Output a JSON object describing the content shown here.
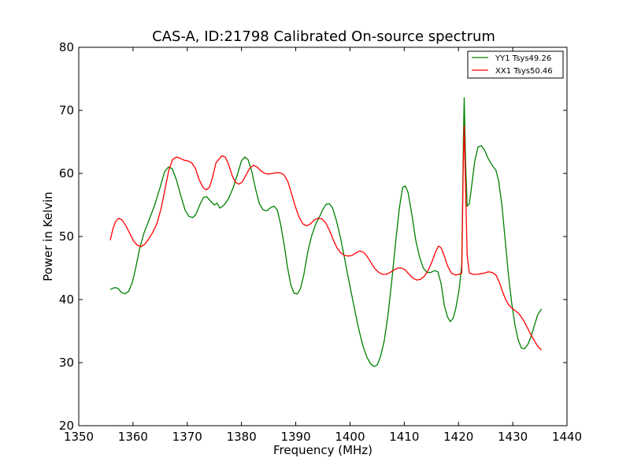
{
  "chart_data": {
    "type": "line",
    "title": "CAS-A, ID:21798 Calibrated On-source spectrum",
    "xlabel": "Frequency (MHz)",
    "ylabel": "Power in Kelvin",
    "xlim": [
      1350,
      1440
    ],
    "ylim": [
      20,
      80
    ],
    "x_ticks": [
      1350,
      1360,
      1370,
      1380,
      1390,
      1400,
      1410,
      1420,
      1430,
      1440
    ],
    "y_ticks": [
      20,
      30,
      40,
      50,
      60,
      70,
      80
    ],
    "grid": false,
    "legend_position": "top-right",
    "series": [
      {
        "name": "YY1 Tsys49.26",
        "color": "#008000",
        "points": [
          [
            1355.8,
            41.6
          ],
          [
            1356.6,
            41.9
          ],
          [
            1357.2,
            41.8
          ],
          [
            1357.8,
            41.2
          ],
          [
            1358.5,
            40.9
          ],
          [
            1359.2,
            41.3
          ],
          [
            1359.9,
            42.8
          ],
          [
            1360.5,
            45.0
          ],
          [
            1361.2,
            48.0
          ],
          [
            1362.0,
            50.5
          ],
          [
            1363.0,
            52.7
          ],
          [
            1364.0,
            55.0
          ],
          [
            1365.0,
            57.8
          ],
          [
            1365.8,
            60.2
          ],
          [
            1366.5,
            61.0
          ],
          [
            1367.2,
            60.8
          ],
          [
            1368.0,
            59.0
          ],
          [
            1368.8,
            56.5
          ],
          [
            1369.6,
            54.2
          ],
          [
            1370.3,
            53.2
          ],
          [
            1371.0,
            53.0
          ],
          [
            1371.6,
            53.5
          ],
          [
            1372.3,
            55.0
          ],
          [
            1373.0,
            56.2
          ],
          [
            1373.6,
            56.3
          ],
          [
            1374.3,
            55.6
          ],
          [
            1375.0,
            55.0
          ],
          [
            1375.5,
            55.3
          ],
          [
            1376.0,
            54.5
          ],
          [
            1376.8,
            55.0
          ],
          [
            1377.6,
            56.0
          ],
          [
            1378.5,
            57.8
          ],
          [
            1379.3,
            60.0
          ],
          [
            1380.0,
            62.0
          ],
          [
            1380.6,
            62.6
          ],
          [
            1381.2,
            62.2
          ],
          [
            1381.9,
            60.3
          ],
          [
            1382.6,
            57.5
          ],
          [
            1383.3,
            55.2
          ],
          [
            1384.0,
            54.2
          ],
          [
            1384.7,
            54.1
          ],
          [
            1385.4,
            54.6
          ],
          [
            1386.0,
            54.8
          ],
          [
            1386.6,
            54.2
          ],
          [
            1387.2,
            52.0
          ],
          [
            1387.9,
            48.5
          ],
          [
            1388.5,
            45.0
          ],
          [
            1389.1,
            42.3
          ],
          [
            1389.7,
            41.0
          ],
          [
            1390.3,
            40.9
          ],
          [
            1390.9,
            41.8
          ],
          [
            1391.5,
            44.0
          ],
          [
            1392.2,
            47.5
          ],
          [
            1392.9,
            50.0
          ],
          [
            1393.6,
            51.8
          ],
          [
            1394.3,
            53.0
          ],
          [
            1395.0,
            54.3
          ],
          [
            1395.6,
            55.1
          ],
          [
            1396.2,
            55.2
          ],
          [
            1396.8,
            54.5
          ],
          [
            1397.5,
            52.5
          ],
          [
            1398.2,
            50.0
          ],
          [
            1398.9,
            47.0
          ],
          [
            1399.6,
            43.8
          ],
          [
            1400.3,
            40.8
          ],
          [
            1401.0,
            37.8
          ],
          [
            1401.7,
            35.0
          ],
          [
            1402.4,
            32.6
          ],
          [
            1403.1,
            30.9
          ],
          [
            1403.8,
            29.8
          ],
          [
            1404.4,
            29.4
          ],
          [
            1405.0,
            29.6
          ],
          [
            1405.6,
            30.9
          ],
          [
            1406.3,
            33.4
          ],
          [
            1407.0,
            37.5
          ],
          [
            1407.7,
            43.0
          ],
          [
            1408.4,
            49.0
          ],
          [
            1409.1,
            54.5
          ],
          [
            1409.7,
            57.8
          ],
          [
            1410.2,
            58.0
          ],
          [
            1410.7,
            57.0
          ],
          [
            1411.4,
            53.5
          ],
          [
            1412.1,
            49.5
          ],
          [
            1412.8,
            46.8
          ],
          [
            1413.5,
            45.0
          ],
          [
            1414.2,
            44.3
          ],
          [
            1414.9,
            44.3
          ],
          [
            1415.6,
            44.6
          ],
          [
            1416.2,
            44.4
          ],
          [
            1416.8,
            42.5
          ],
          [
            1417.4,
            39.0
          ],
          [
            1418.0,
            37.2
          ],
          [
            1418.5,
            36.5
          ],
          [
            1419.0,
            37.0
          ],
          [
            1419.5,
            38.6
          ],
          [
            1420.1,
            41.5
          ],
          [
            1420.6,
            45.5
          ],
          [
            1420.9,
            65.0
          ],
          [
            1421.05,
            72.0
          ],
          [
            1421.3,
            62.0
          ],
          [
            1421.6,
            54.8
          ],
          [
            1422.0,
            55.2
          ],
          [
            1422.5,
            58.5
          ],
          [
            1423.0,
            62.0
          ],
          [
            1423.6,
            64.2
          ],
          [
            1424.2,
            64.4
          ],
          [
            1424.8,
            63.7
          ],
          [
            1425.5,
            62.3
          ],
          [
            1426.2,
            61.3
          ],
          [
            1426.9,
            60.5
          ],
          [
            1427.4,
            58.8
          ],
          [
            1428.0,
            55.0
          ],
          [
            1428.6,
            49.5
          ],
          [
            1429.2,
            44.0
          ],
          [
            1429.8,
            39.5
          ],
          [
            1430.4,
            36.0
          ],
          [
            1431.0,
            33.6
          ],
          [
            1431.6,
            32.3
          ],
          [
            1432.2,
            32.2
          ],
          [
            1432.8,
            32.9
          ],
          [
            1433.4,
            34.2
          ],
          [
            1434.0,
            35.9
          ],
          [
            1434.6,
            37.6
          ],
          [
            1435.3,
            38.5
          ]
        ]
      },
      {
        "name": "XX1 Tsys50.46",
        "color": "#ff0000",
        "points": [
          [
            1355.8,
            49.4
          ],
          [
            1356.3,
            51.2
          ],
          [
            1356.8,
            52.4
          ],
          [
            1357.4,
            52.9
          ],
          [
            1358.0,
            52.6
          ],
          [
            1358.7,
            51.7
          ],
          [
            1359.4,
            50.5
          ],
          [
            1360.1,
            49.3
          ],
          [
            1360.8,
            48.6
          ],
          [
            1361.5,
            48.4
          ],
          [
            1362.2,
            48.8
          ],
          [
            1362.9,
            49.6
          ],
          [
            1363.6,
            50.6
          ],
          [
            1364.4,
            52.0
          ],
          [
            1365.2,
            54.5
          ],
          [
            1365.9,
            57.5
          ],
          [
            1366.6,
            60.5
          ],
          [
            1367.3,
            62.2
          ],
          [
            1368.0,
            62.6
          ],
          [
            1368.7,
            62.4
          ],
          [
            1369.4,
            62.1
          ],
          [
            1370.1,
            62.0
          ],
          [
            1370.8,
            61.7
          ],
          [
            1371.5,
            60.8
          ],
          [
            1372.2,
            59.0
          ],
          [
            1372.9,
            57.8
          ],
          [
            1373.5,
            57.4
          ],
          [
            1374.1,
            57.8
          ],
          [
            1374.7,
            59.5
          ],
          [
            1375.3,
            61.7
          ],
          [
            1375.9,
            62.3
          ],
          [
            1376.4,
            62.8
          ],
          [
            1377.0,
            62.6
          ],
          [
            1377.6,
            61.5
          ],
          [
            1378.3,
            59.6
          ],
          [
            1378.9,
            58.6
          ],
          [
            1379.5,
            58.3
          ],
          [
            1380.1,
            58.6
          ],
          [
            1380.8,
            59.7
          ],
          [
            1381.5,
            60.8
          ],
          [
            1382.2,
            61.3
          ],
          [
            1382.9,
            61.0
          ],
          [
            1383.6,
            60.4
          ],
          [
            1384.3,
            60.0
          ],
          [
            1385.0,
            59.9
          ],
          [
            1385.7,
            60.0
          ],
          [
            1386.4,
            60.1
          ],
          [
            1387.1,
            60.1
          ],
          [
            1387.8,
            59.8
          ],
          [
            1388.5,
            58.8
          ],
          [
            1389.2,
            56.9
          ],
          [
            1389.9,
            54.8
          ],
          [
            1390.6,
            53.1
          ],
          [
            1391.3,
            52.0
          ],
          [
            1392.0,
            51.7
          ],
          [
            1392.7,
            52.0
          ],
          [
            1393.4,
            52.6
          ],
          [
            1394.1,
            52.9
          ],
          [
            1394.8,
            52.8
          ],
          [
            1395.5,
            52.2
          ],
          [
            1396.2,
            51.0
          ],
          [
            1396.9,
            49.5
          ],
          [
            1397.6,
            48.2
          ],
          [
            1398.3,
            47.4
          ],
          [
            1399.0,
            47.0
          ],
          [
            1399.7,
            46.9
          ],
          [
            1400.4,
            47.0
          ],
          [
            1401.1,
            47.4
          ],
          [
            1401.8,
            47.7
          ],
          [
            1402.5,
            47.5
          ],
          [
            1403.2,
            46.8
          ],
          [
            1403.9,
            45.8
          ],
          [
            1404.6,
            44.9
          ],
          [
            1405.3,
            44.3
          ],
          [
            1406.0,
            44.0
          ],
          [
            1406.7,
            44.0
          ],
          [
            1407.4,
            44.3
          ],
          [
            1408.1,
            44.7
          ],
          [
            1408.8,
            45.0
          ],
          [
            1409.5,
            45.0
          ],
          [
            1410.2,
            44.7
          ],
          [
            1410.9,
            44.0
          ],
          [
            1411.6,
            43.4
          ],
          [
            1412.3,
            43.1
          ],
          [
            1413.0,
            43.2
          ],
          [
            1413.7,
            43.7
          ],
          [
            1414.4,
            44.6
          ],
          [
            1415.1,
            46.0
          ],
          [
            1415.8,
            47.6
          ],
          [
            1416.3,
            48.5
          ],
          [
            1416.8,
            48.2
          ],
          [
            1417.4,
            46.9
          ],
          [
            1418.0,
            45.3
          ],
          [
            1418.7,
            44.2
          ],
          [
            1419.4,
            43.9
          ],
          [
            1420.1,
            44.0
          ],
          [
            1420.6,
            44.2
          ],
          [
            1420.85,
            60.0
          ],
          [
            1421.05,
            67.5
          ],
          [
            1421.3,
            58.0
          ],
          [
            1421.6,
            47.0
          ],
          [
            1422.0,
            44.2
          ],
          [
            1422.7,
            44.0
          ],
          [
            1423.4,
            44.0
          ],
          [
            1424.1,
            44.1
          ],
          [
            1424.8,
            44.2
          ],
          [
            1425.5,
            44.4
          ],
          [
            1426.2,
            44.3
          ],
          [
            1426.9,
            43.9
          ],
          [
            1427.5,
            42.8
          ],
          [
            1428.1,
            41.3
          ],
          [
            1428.7,
            40.0
          ],
          [
            1429.3,
            39.1
          ],
          [
            1429.9,
            38.6
          ],
          [
            1430.5,
            38.2
          ],
          [
            1431.1,
            37.8
          ],
          [
            1431.7,
            37.1
          ],
          [
            1432.3,
            36.2
          ],
          [
            1432.9,
            35.2
          ],
          [
            1433.5,
            34.2
          ],
          [
            1434.1,
            33.3
          ],
          [
            1434.7,
            32.5
          ],
          [
            1435.3,
            32.0
          ]
        ]
      }
    ]
  }
}
